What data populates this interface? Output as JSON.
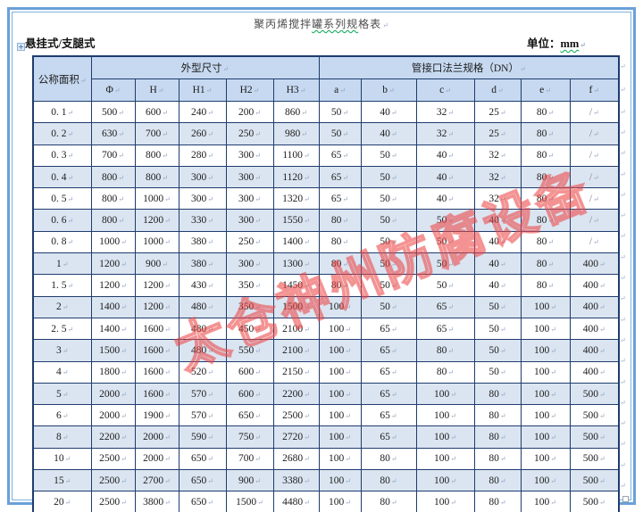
{
  "title": {
    "pre": "聚丙烯搅拌",
    "underlined": "罐系列规",
    "post": "格表"
  },
  "subheader": {
    "mode_label": "悬挂式/支腿式",
    "unit_label": "单位：",
    "unit_value": "mm"
  },
  "marks": {
    "pilcrow": "↵"
  },
  "watermark": {
    "text": "太仓神州防腐设备",
    "color": "#eb4646"
  },
  "colors": {
    "frame_blue": "#6aa0d8",
    "table_border": "#1f3c6e",
    "header_bg": "#c6d9f0",
    "band_bg": "#dbe5f1",
    "squiggle_green": "#00a651",
    "watermark_red": "#eb4646"
  },
  "table": {
    "group_headers": {
      "area": "公称面积",
      "dims": "外型尺寸",
      "flange": "管接口法兰规格（DN）"
    },
    "sub_headers": [
      "Φ",
      "H",
      "H1",
      "H2",
      "H3",
      "a",
      "b",
      "c",
      "d",
      "e",
      "f"
    ],
    "rows": [
      [
        "0. 1",
        "500",
        "600",
        "240",
        "200",
        "860",
        "50",
        "40",
        "32",
        "25",
        "80",
        "/"
      ],
      [
        "0. 2",
        "630",
        "700",
        "260",
        "250",
        "980",
        "50",
        "40",
        "32",
        "25",
        "80",
        "/"
      ],
      [
        "0. 3",
        "700",
        "800",
        "280",
        "300",
        "1100",
        "65",
        "50",
        "40",
        "32",
        "80",
        "/"
      ],
      [
        "0. 4",
        "800",
        "800",
        "300",
        "300",
        "1120",
        "65",
        "50",
        "40",
        "32",
        "80",
        "/"
      ],
      [
        "0. 5",
        "800",
        "1000",
        "300",
        "300",
        "1320",
        "65",
        "50",
        "40",
        "32",
        "80",
        "/"
      ],
      [
        "0. 6",
        "800",
        "1200",
        "330",
        "300",
        "1550",
        "80",
        "50",
        "50",
        "40",
        "80",
        "/"
      ],
      [
        "0. 8",
        "1000",
        "1000",
        "380",
        "250",
        "1400",
        "80",
        "50",
        "50",
        "40",
        "80",
        "/"
      ],
      [
        "1",
        "1200",
        "900",
        "380",
        "300",
        "1300",
        "80",
        "50",
        "50",
        "40",
        "80",
        "400"
      ],
      [
        "1. 5",
        "1200",
        "1200",
        "430",
        "350",
        "1450",
        "80",
        "50",
        "50",
        "40",
        "80",
        "400"
      ],
      [
        "2",
        "1400",
        "1200",
        "480",
        "350",
        "1500",
        "100",
        "50",
        "65",
        "50",
        "100",
        "400"
      ],
      [
        "2. 5",
        "1400",
        "1600",
        "480",
        "450",
        "2100",
        "100",
        "65",
        "65",
        "50",
        "100",
        "400"
      ],
      [
        "3",
        "1500",
        "1600",
        "480",
        "550",
        "2100",
        "100",
        "65",
        "80",
        "50",
        "100",
        "400"
      ],
      [
        "4",
        "1800",
        "1600",
        "520",
        "600",
        "2150",
        "100",
        "65",
        "80",
        "50",
        "100",
        "400"
      ],
      [
        "5",
        "2000",
        "1600",
        "570",
        "600",
        "2200",
        "100",
        "65",
        "100",
        "80",
        "100",
        "500"
      ],
      [
        "6",
        "2000",
        "1900",
        "570",
        "650",
        "2500",
        "100",
        "65",
        "100",
        "80",
        "100",
        "500"
      ],
      [
        "8",
        "2200",
        "2000",
        "590",
        "750",
        "2720",
        "100",
        "65",
        "100",
        "80",
        "100",
        "500"
      ],
      [
        "10",
        "2500",
        "2000",
        "650",
        "700",
        "2680",
        "100",
        "80",
        "100",
        "80",
        "100",
        "500"
      ],
      [
        "15",
        "2500",
        "2700",
        "650",
        "900",
        "3380",
        "100",
        "80",
        "100",
        "80",
        "100",
        "500"
      ],
      [
        "20",
        "2500",
        "3800",
        "650",
        "1500",
        "4480",
        "100",
        "80",
        "100",
        "80",
        "100",
        "500"
      ]
    ]
  }
}
